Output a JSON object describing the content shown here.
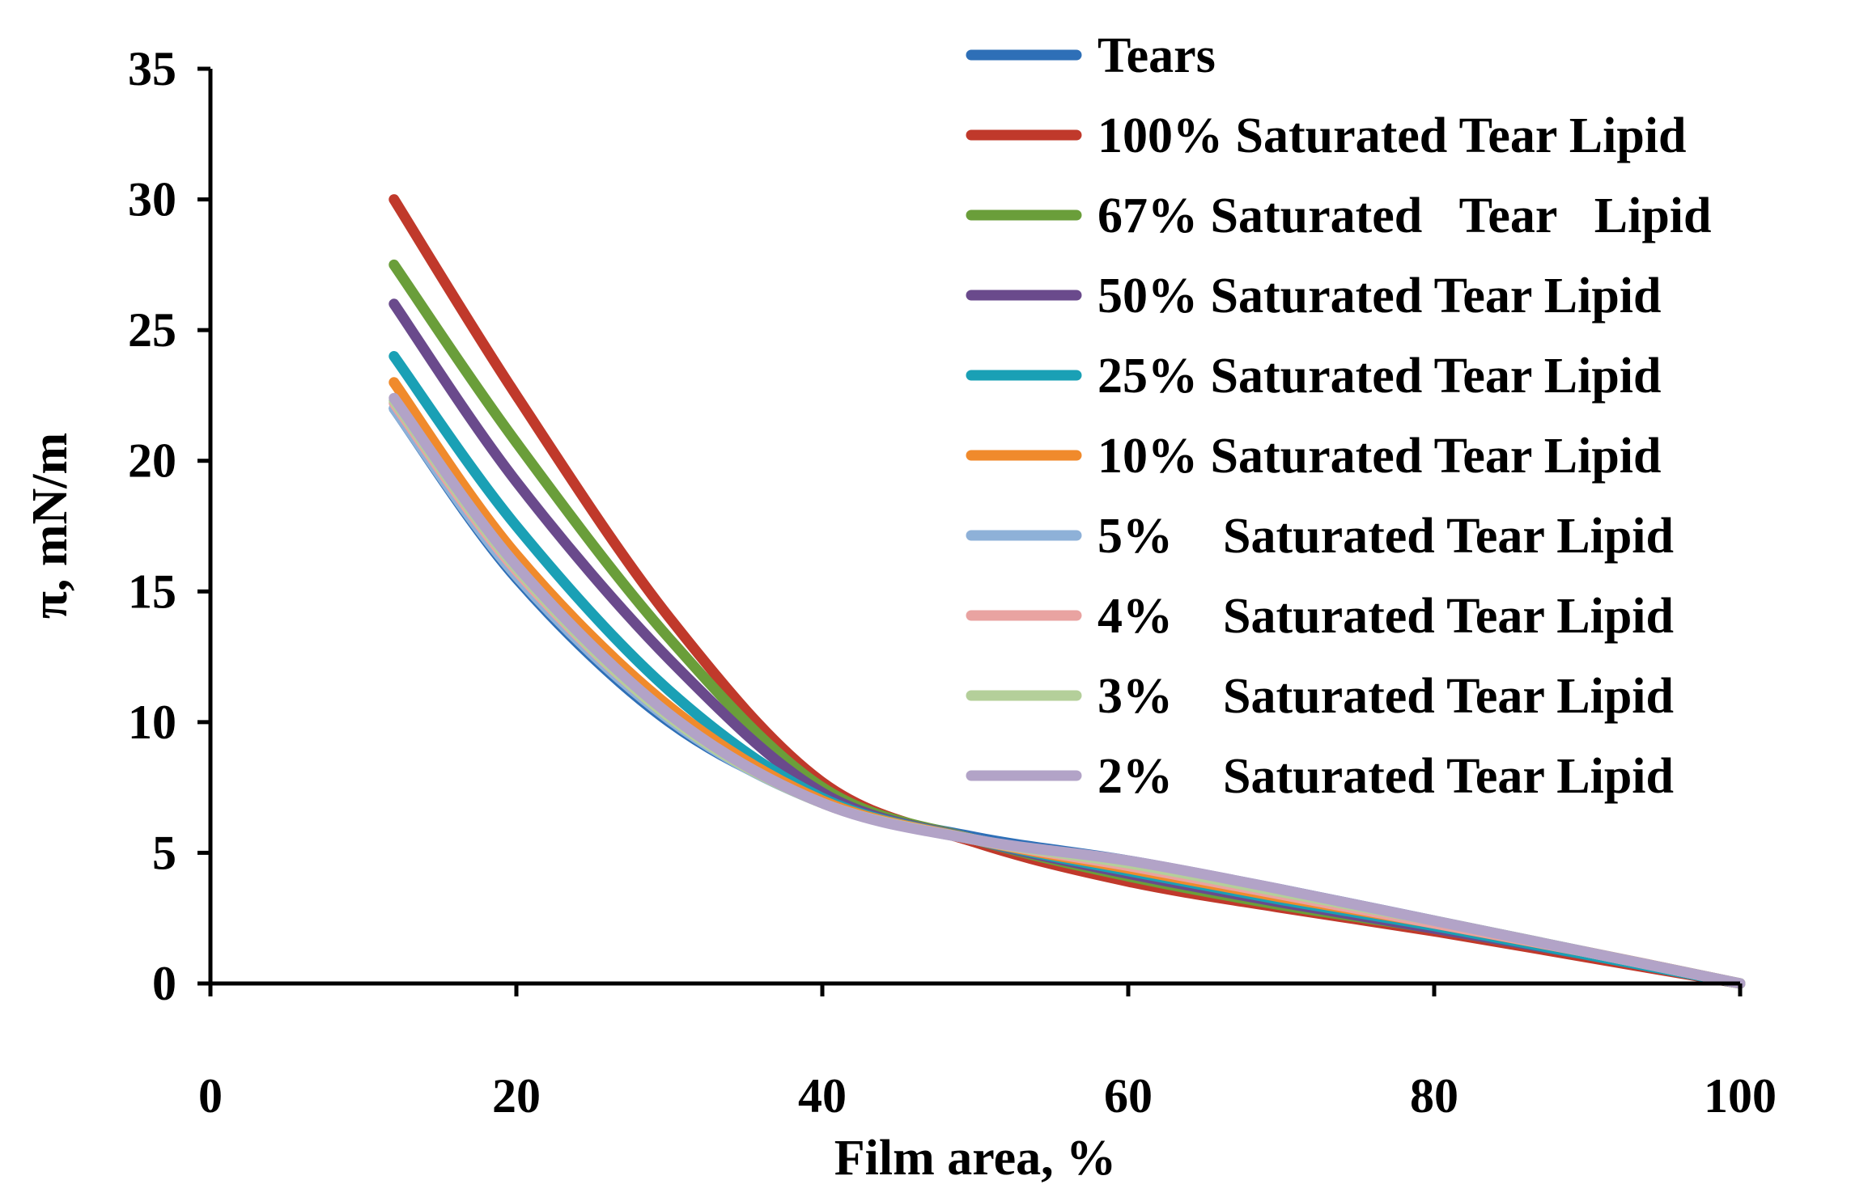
{
  "chart_data": {
    "type": "line",
    "title": "",
    "xlabel": "Film area, %",
    "ylabel": "π, mN/m",
    "xlim": [
      0,
      100
    ],
    "ylim": [
      0,
      35
    ],
    "xticks": [
      0,
      20,
      40,
      60,
      80,
      100
    ],
    "yticks": [
      0,
      5,
      10,
      15,
      20,
      25,
      30,
      35
    ],
    "grid": false,
    "legend_position": "top-right",
    "x": [
      12,
      20,
      30,
      40,
      50,
      60,
      70,
      80,
      90,
      100
    ],
    "series": [
      {
        "name": "Tears",
        "label_text": "Tears",
        "color": "#2e6fb7",
        "values": [
          22,
          15.5,
          10,
          7,
          5.6,
          4.7,
          3.6,
          2.4,
          1.2,
          0
        ]
      },
      {
        "name": "100% Saturated Tear Lipid",
        "label_text": "100% Saturated Tear Lipid",
        "color": "#c0392b",
        "values": [
          30,
          22.5,
          14,
          7.7,
          5.4,
          3.9,
          2.9,
          2.0,
          1.0,
          0
        ]
      },
      {
        "name": "67% Saturated Tear Lipid",
        "label_text": "67% Saturated   Tear   Lipid",
        "color": "#6a9e3a",
        "values": [
          27.5,
          20.7,
          13.2,
          7.5,
          5.5,
          4.1,
          3.0,
          2.1,
          1.1,
          0
        ]
      },
      {
        "name": "50% Saturated Tear Lipid",
        "label_text": "50% Saturated Tear Lipid",
        "color": "#6a4a8c",
        "values": [
          26,
          19.2,
          12.4,
          7.3,
          5.5,
          4.2,
          3.1,
          2.1,
          1.1,
          0
        ]
      },
      {
        "name": "25% Saturated Tear Lipid",
        "label_text": "25% Saturated Tear Lipid",
        "color": "#1aa0b5",
        "values": [
          24,
          17.5,
          11.2,
          7.1,
          5.5,
          4.3,
          3.2,
          2.2,
          1.1,
          0
        ]
      },
      {
        "name": "10% Saturated Tear Lipid",
        "label_text": "10% Saturated Tear Lipid",
        "color": "#f08a2c",
        "values": [
          23,
          16.4,
          10.6,
          7.0,
          5.5,
          4.4,
          3.3,
          2.3,
          1.2,
          0
        ]
      },
      {
        "name": "5% Saturated Tear Lipid",
        "label_text": "5%    Saturated Tear Lipid",
        "color": "#8eb1d8",
        "values": [
          22,
          15.6,
          10.1,
          6.9,
          5.5,
          4.6,
          3.5,
          2.4,
          1.2,
          0
        ]
      },
      {
        "name": "4% Saturated Tear Lipid",
        "label_text": "4%    Saturated Tear Lipid",
        "color": "#e9a3a1",
        "values": [
          22.2,
          15.8,
          10.2,
          6.9,
          5.5,
          4.5,
          3.4,
          2.3,
          1.2,
          0
        ]
      },
      {
        "name": "3% Saturated Tear Lipid",
        "label_text": "3%    Saturated Tear Lipid",
        "color": "#b4cf9a",
        "values": [
          22.3,
          15.9,
          10.2,
          6.9,
          5.5,
          4.6,
          3.5,
          2.4,
          1.2,
          0
        ]
      },
      {
        "name": "2% Saturated Tear Lipid",
        "label_text": "2%    Saturated Tear Lipid",
        "color": "#b2a3c7",
        "values": [
          22.4,
          16.0,
          10.3,
          6.9,
          5.5,
          4.7,
          3.6,
          2.4,
          1.2,
          0
        ]
      }
    ]
  }
}
